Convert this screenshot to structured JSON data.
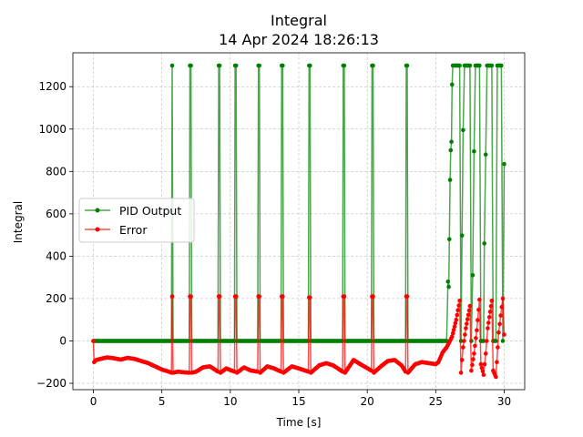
{
  "chart_data": {
    "type": "line",
    "title": "Integral",
    "subtitle": "14 Apr 2024 18:26:13",
    "xlabel": "Time [s]",
    "ylabel": "Integral",
    "xlim": [
      -1.5,
      31.5
    ],
    "ylim": [
      -230,
      1360
    ],
    "xticks": [
      0,
      5,
      10,
      15,
      20,
      25,
      30
    ],
    "yticks": [
      -200,
      0,
      200,
      400,
      600,
      800,
      1000,
      1200
    ],
    "grid": true,
    "legend_position": "center-left",
    "series": [
      {
        "name": "PID Output",
        "color": "#008000",
        "points": [
          [
            0.0,
            0
          ],
          [
            5.7,
            0
          ],
          [
            5.75,
            1300
          ],
          [
            5.82,
            0
          ],
          [
            7.0,
            0
          ],
          [
            7.05,
            1300
          ],
          [
            7.12,
            1300
          ],
          [
            7.18,
            0
          ],
          [
            9.1,
            0
          ],
          [
            9.15,
            1300
          ],
          [
            9.22,
            1300
          ],
          [
            9.28,
            0
          ],
          [
            10.3,
            0
          ],
          [
            10.35,
            1300
          ],
          [
            10.42,
            1300
          ],
          [
            10.48,
            0
          ],
          [
            12.0,
            0
          ],
          [
            12.05,
            1300
          ],
          [
            12.12,
            1300
          ],
          [
            12.18,
            0
          ],
          [
            13.7,
            0
          ],
          [
            13.75,
            1300
          ],
          [
            13.82,
            1300
          ],
          [
            13.88,
            0
          ],
          [
            15.7,
            0
          ],
          [
            15.75,
            1300
          ],
          [
            15.82,
            1300
          ],
          [
            15.88,
            0
          ],
          [
            18.2,
            0
          ],
          [
            18.25,
            1300
          ],
          [
            18.32,
            1300
          ],
          [
            18.38,
            0
          ],
          [
            20.3,
            0
          ],
          [
            20.35,
            1300
          ],
          [
            20.42,
            1300
          ],
          [
            20.48,
            0
          ],
          [
            22.8,
            0
          ],
          [
            22.85,
            1300
          ],
          [
            22.92,
            1300
          ],
          [
            22.98,
            0
          ],
          [
            25.8,
            0
          ],
          [
            25.9,
            280
          ],
          [
            25.95,
            255
          ],
          [
            26.0,
            480
          ],
          [
            26.05,
            760
          ],
          [
            26.1,
            900
          ],
          [
            26.15,
            940
          ],
          [
            26.2,
            1210
          ],
          [
            26.25,
            1300
          ],
          [
            26.5,
            1300
          ],
          [
            26.75,
            1300
          ],
          [
            26.85,
            0
          ],
          [
            27.0,
            995
          ],
          [
            27.1,
            1300
          ],
          [
            27.5,
            1300
          ],
          [
            27.6,
            0
          ],
          [
            27.7,
            310
          ],
          [
            27.8,
            895
          ],
          [
            27.9,
            1300
          ],
          [
            28.2,
            1300
          ],
          [
            28.3,
            0
          ],
          [
            28.5,
            0
          ],
          [
            28.55,
            460
          ],
          [
            28.65,
            880
          ],
          [
            28.75,
            1300
          ],
          [
            29.1,
            1300
          ],
          [
            29.2,
            0
          ],
          [
            29.4,
            0
          ],
          [
            29.5,
            1300
          ],
          [
            29.8,
            1300
          ],
          [
            29.9,
            0
          ],
          [
            30.0,
            835
          ]
        ]
      },
      {
        "name": "Error",
        "color": "#ff0000",
        "points": [
          [
            0.0,
            0
          ],
          [
            0.05,
            -100
          ],
          [
            0.2,
            -90
          ],
          [
            0.5,
            -85
          ],
          [
            1.0,
            -78
          ],
          [
            1.5,
            -82
          ],
          [
            2.0,
            -88
          ],
          [
            2.5,
            -80
          ],
          [
            3.0,
            -85
          ],
          [
            3.5,
            -95
          ],
          [
            4.0,
            -105
          ],
          [
            4.5,
            -120
          ],
          [
            5.0,
            -135
          ],
          [
            5.5,
            -145
          ],
          [
            5.7,
            -150
          ],
          [
            5.75,
            210
          ],
          [
            5.82,
            -150
          ],
          [
            6.2,
            -145
          ],
          [
            6.6,
            -148
          ],
          [
            7.0,
            -150
          ],
          [
            7.05,
            210
          ],
          [
            7.12,
            210
          ],
          [
            7.18,
            -150
          ],
          [
            7.5,
            -145
          ],
          [
            8.0,
            -125
          ],
          [
            8.5,
            -120
          ],
          [
            9.1,
            -145
          ],
          [
            9.15,
            210
          ],
          [
            9.22,
            210
          ],
          [
            9.28,
            -150
          ],
          [
            9.7,
            -130
          ],
          [
            10.3,
            -145
          ],
          [
            10.35,
            210
          ],
          [
            10.42,
            210
          ],
          [
            10.48,
            -150
          ],
          [
            11.0,
            -125
          ],
          [
            11.5,
            -140
          ],
          [
            12.0,
            -145
          ],
          [
            12.05,
            210
          ],
          [
            12.12,
            210
          ],
          [
            12.18,
            -150
          ],
          [
            12.7,
            -120
          ],
          [
            13.2,
            -130
          ],
          [
            13.7,
            -145
          ],
          [
            13.75,
            210
          ],
          [
            13.82,
            210
          ],
          [
            13.88,
            -150
          ],
          [
            14.5,
            -120
          ],
          [
            15.0,
            -130
          ],
          [
            15.7,
            -145
          ],
          [
            15.75,
            205
          ],
          [
            15.82,
            205
          ],
          [
            15.88,
            -150
          ],
          [
            16.5,
            -115
          ],
          [
            17.0,
            -105
          ],
          [
            17.5,
            -115
          ],
          [
            18.2,
            -145
          ],
          [
            18.25,
            210
          ],
          [
            18.32,
            210
          ],
          [
            18.38,
            -150
          ],
          [
            19.0,
            -90
          ],
          [
            19.5,
            -110
          ],
          [
            20.3,
            -140
          ],
          [
            20.35,
            210
          ],
          [
            20.42,
            210
          ],
          [
            20.48,
            -150
          ],
          [
            21.0,
            -120
          ],
          [
            21.5,
            -95
          ],
          [
            22.0,
            -90
          ],
          [
            22.5,
            -115
          ],
          [
            22.8,
            -145
          ],
          [
            22.85,
            210
          ],
          [
            22.92,
            210
          ],
          [
            22.98,
            -150
          ],
          [
            23.5,
            -110
          ],
          [
            24.0,
            -100
          ],
          [
            24.5,
            -105
          ],
          [
            25.0,
            -110
          ],
          [
            25.2,
            -100
          ],
          [
            25.5,
            -55
          ],
          [
            25.8,
            -30
          ],
          [
            26.0,
            -5
          ],
          [
            26.2,
            20
          ],
          [
            26.5,
            100
          ],
          [
            26.75,
            190
          ],
          [
            26.85,
            -150
          ],
          [
            27.0,
            -30
          ],
          [
            27.2,
            60
          ],
          [
            27.5,
            165
          ],
          [
            27.6,
            -140
          ],
          [
            27.8,
            -60
          ],
          [
            28.0,
            50
          ],
          [
            28.2,
            195
          ],
          [
            28.3,
            -110
          ],
          [
            28.5,
            -160
          ],
          [
            28.65,
            -60
          ],
          [
            28.8,
            60
          ],
          [
            29.1,
            190
          ],
          [
            29.2,
            -140
          ],
          [
            29.4,
            -170
          ],
          [
            29.6,
            40
          ],
          [
            29.9,
            200
          ],
          [
            30.0,
            30
          ]
        ]
      }
    ]
  }
}
